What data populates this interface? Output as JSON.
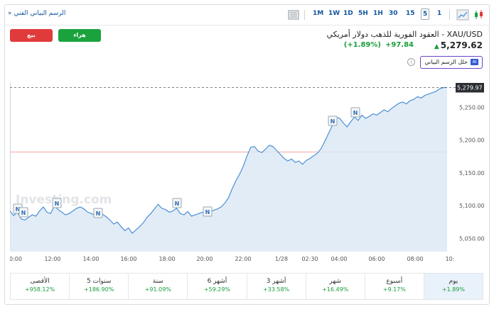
{
  "toolbar": {
    "tech_chart_link": "الرسم البياني الفني",
    "timeframes": [
      "1M",
      "1W",
      "1D",
      "5H",
      "1H",
      "30",
      "15",
      "5",
      "1"
    ],
    "selected_timeframe": "5"
  },
  "actions": {
    "sell_label": "بيع",
    "buy_label": "هراء"
  },
  "instrument": {
    "title": "XAU/USD - العقود الفورية للذهب دولار أمريكي",
    "price": "5,279.62",
    "change": "+97.84",
    "change_pct": "(+1.89%)",
    "direction": "up"
  },
  "ai": {
    "badge": "AI",
    "label": "حلل الرسم البياني"
  },
  "chart_data": {
    "type": "area",
    "watermark": "Investing.com",
    "x_tick_labels": [
      "0:00",
      "12:00",
      "14:00",
      "16:00",
      "18:00",
      "20:00",
      "22:00",
      "1/28",
      "02:30",
      "04:00",
      "06:00",
      "08:00",
      "10:"
    ],
    "y_tick_labels": [
      "5,050.00",
      "5,100.00",
      "5,150.00",
      "5,200.00",
      "5,250.00"
    ],
    "ylim": [
      5030,
      5287
    ],
    "last_price_label": "5,279.97",
    "last_price": 5279.97,
    "reference_line": 5181.78,
    "series": [
      {
        "values": [
          5092,
          5085,
          5090,
          5080,
          5078,
          5082,
          5086,
          5084,
          5092,
          5098,
          5090,
          5088,
          5100,
          5094,
          5090,
          5086,
          5088,
          5092,
          5096,
          5098,
          5095,
          5090,
          5088,
          5085,
          5090,
          5087,
          5083,
          5078,
          5072,
          5075,
          5068,
          5062,
          5066,
          5058,
          5063,
          5068,
          5074,
          5082,
          5088,
          5095,
          5102,
          5096,
          5094,
          5090,
          5092,
          5096,
          5088,
          5086,
          5091,
          5084,
          5086,
          5088,
          5090,
          5087,
          5091,
          5093,
          5095,
          5098,
          5104,
          5112,
          5126,
          5138,
          5148,
          5160,
          5176,
          5189,
          5190,
          5183,
          5181,
          5186,
          5192,
          5190,
          5184,
          5178,
          5172,
          5168,
          5171,
          5166,
          5168,
          5163,
          5169,
          5172,
          5176,
          5180,
          5187,
          5198,
          5210,
          5222,
          5235,
          5233,
          5226,
          5220,
          5228,
          5235,
          5230,
          5238,
          5233,
          5236,
          5240,
          5238,
          5242,
          5246,
          5243,
          5248,
          5252,
          5256,
          5258,
          5255,
          5260,
          5262,
          5266,
          5264,
          5268,
          5270,
          5272,
          5274,
          5278,
          5280,
          5280
        ]
      }
    ],
    "news_markers": 8,
    "grid": false
  },
  "performance": [
    {
      "label": "يوم",
      "value": "+1.89%"
    },
    {
      "label": "أسبوع",
      "value": "+9.17%"
    },
    {
      "label": "شهر",
      "value": "+16.49%"
    },
    {
      "label": "3 أشهر",
      "value": "+33.58%"
    },
    {
      "label": "6 أشهر",
      "value": "+59.29%"
    },
    {
      "label": "سنة",
      "value": "+91.09%"
    },
    {
      "label": "5 سنوات",
      "value": "+186.90%"
    },
    {
      "label": "الأقصى",
      "value": "+958.12%"
    }
  ],
  "colors": {
    "up": "#1a9e3a",
    "sell": "#e03a3a",
    "buy": "#1aa33d",
    "line": "#4b90d6",
    "area": "#dde9f5",
    "link": "#1256a0"
  }
}
